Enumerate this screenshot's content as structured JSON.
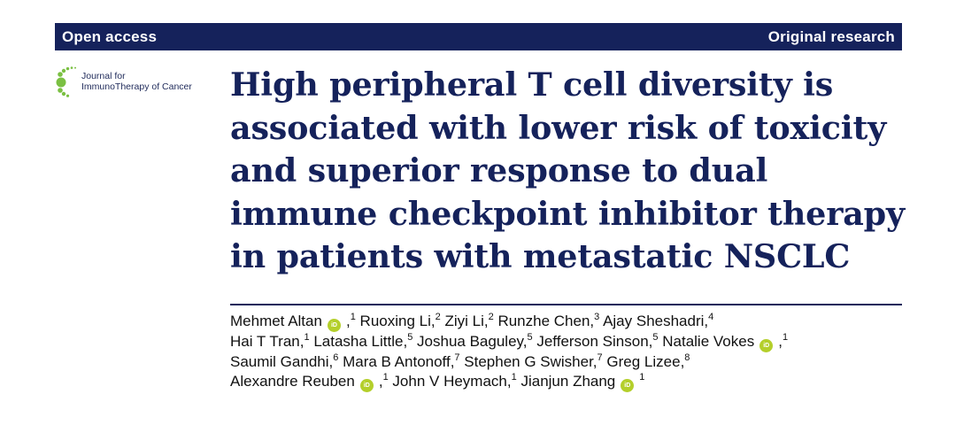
{
  "header": {
    "left_label": "Open access",
    "right_label": "Original research",
    "bar_color": "#15225b"
  },
  "journal": {
    "logo_icon": "dot-arc-logo-icon",
    "name_line1": "Journal for",
    "name_line2": "ImmunoTherapy of Cancer",
    "accent_color": "#7bc043"
  },
  "title": "High peripheral T cell diversity is associated with lower risk of toxicity and superior response to dual immune checkpoint inhibitor therapy in patients with metastatic NSCLC",
  "orcid_label": "iD",
  "authors": {
    "a1": "Mehmet Altan",
    "a1_sup": "1",
    "a2": "Ruoxing Li,",
    "a2_sup": "2",
    "a3": "Ziyi Li,",
    "a3_sup": "2",
    "a4": "Runzhe Chen,",
    "a4_sup": "3",
    "a5": "Ajay Sheshadri,",
    "a5_sup": "4",
    "a6": "Hai T Tran,",
    "a6_sup": "1",
    "a7": "Latasha Little,",
    "a7_sup": "5",
    "a8": "Joshua Baguley,",
    "a8_sup": "5",
    "a9": "Jefferson Sinson,",
    "a9_sup": "5",
    "a10": "Natalie Vokes",
    "a10_sup": "1",
    "a11": "Saumil Gandhi,",
    "a11_sup": "6",
    "a12": "Mara B Antonoff,",
    "a12_sup": "7",
    "a13": "Stephen G Swisher,",
    "a13_sup": "7",
    "a14": "Greg Lizee,",
    "a14_sup": "8",
    "a15": "Alexandre Reuben",
    "a15_sup": "1",
    "a16": "John V Heymach,",
    "a16_sup": "1",
    "a17": "Jianjun Zhang",
    "a17_sup": "1"
  }
}
